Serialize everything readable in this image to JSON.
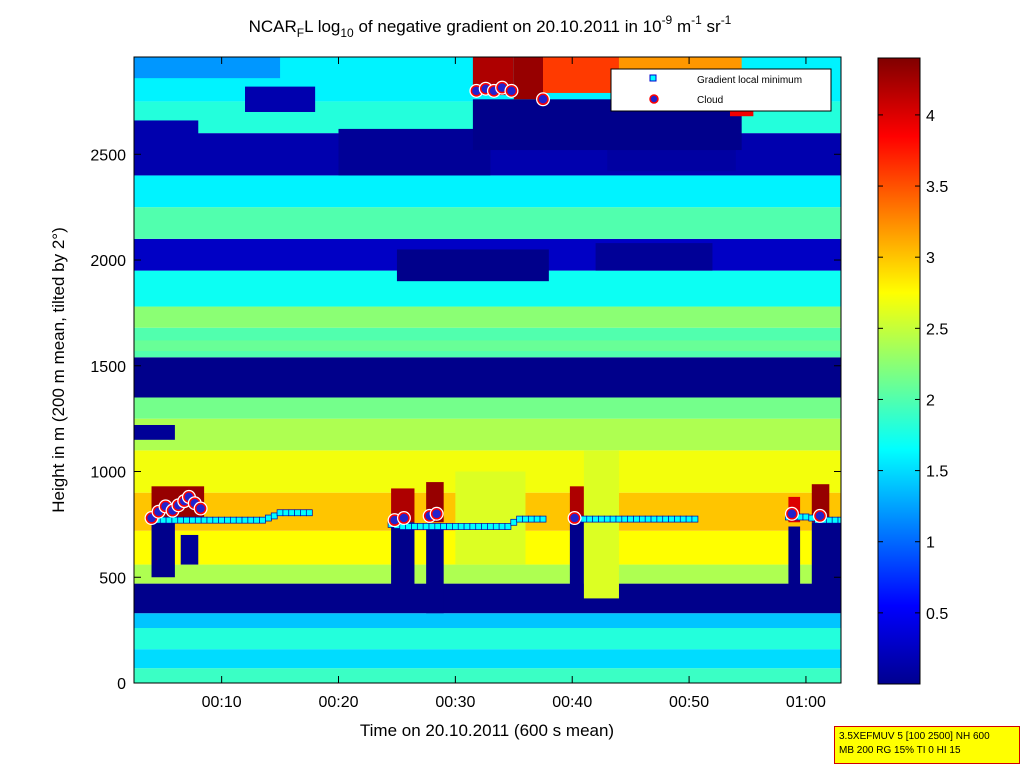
{
  "chart_data": {
    "type": "heatmap",
    "title": {
      "prefix": "NCAR",
      "sub": "F",
      "mid": "L log",
      "log_base": "10",
      "text": " of negative gradient on 20.10.2011 in 10",
      "exp1": "-9",
      "unit1": " m",
      "exp2": "-1",
      "unit2": " sr",
      "exp3": "-1"
    },
    "xlabel": "Time on 20.10.2011 (600 s mean)",
    "ylabel": "Height in m (200 m mean, tilted by 2°)",
    "x_unit": "minutes after 00:00",
    "xlim": [
      2.5,
      63
    ],
    "ylim": [
      0,
      2960
    ],
    "x_ticks": [
      {
        "v": 10,
        "label": "00:10"
      },
      {
        "v": 20,
        "label": "00:20"
      },
      {
        "v": 30,
        "label": "00:30"
      },
      {
        "v": 40,
        "label": "00:40"
      },
      {
        "v": 50,
        "label": "00:50"
      },
      {
        "v": 60,
        "label": "01:00"
      }
    ],
    "y_ticks": [
      {
        "v": 0,
        "label": "0"
      },
      {
        "v": 500,
        "label": "500"
      },
      {
        "v": 1000,
        "label": "1000"
      },
      {
        "v": 1500,
        "label": "1500"
      },
      {
        "v": 2000,
        "label": "2000"
      },
      {
        "v": 2500,
        "label": "2500"
      }
    ],
    "colorbar": {
      "min": 0,
      "max": 4.4,
      "colormap": "jet",
      "ticks": [
        {
          "v": 0.5,
          "label": "0.5"
        },
        {
          "v": 1,
          "label": "1"
        },
        {
          "v": 1.5,
          "label": "1.5"
        },
        {
          "v": 2,
          "label": "2"
        },
        {
          "v": 2.5,
          "label": "2.5"
        },
        {
          "v": 3,
          "label": "3"
        },
        {
          "v": 3.5,
          "label": "3.5"
        },
        {
          "v": 4,
          "label": "4"
        }
      ]
    },
    "legend": {
      "placement": "top-right",
      "entries": [
        {
          "name": "Gradient local minimum",
          "marker": "square",
          "color": "#00ffff"
        },
        {
          "name": "Cloud",
          "marker": "circle",
          "color": "#0000cc",
          "edge": "#ff0000"
        }
      ]
    },
    "bands": [
      {
        "y0": 0,
        "y1": 70,
        "value": 1.9
      },
      {
        "y0": 70,
        "y1": 160,
        "value": 1.5
      },
      {
        "y0": 160,
        "y1": 260,
        "value": 1.8
      },
      {
        "y0": 260,
        "y1": 330,
        "value": 1.4
      },
      {
        "y0": 330,
        "y1": 470,
        "value": 0.05
      },
      {
        "y0": 470,
        "y1": 560,
        "value": 2.4
      },
      {
        "y0": 560,
        "y1": 720,
        "value": 2.75
      },
      {
        "y0": 720,
        "y1": 900,
        "value": 3.0
      },
      {
        "y0": 900,
        "y1": 1100,
        "value": 2.7
      },
      {
        "y0": 1100,
        "y1": 1250,
        "value": 2.4
      },
      {
        "y0": 1250,
        "y1": 1350,
        "value": 2.15
      },
      {
        "y0": 1350,
        "y1": 1540,
        "value": 0.05
      },
      {
        "y0": 1540,
        "y1": 1680,
        "value": 2.0
      },
      {
        "y0": 1680,
        "y1": 1780,
        "value": 2.25
      },
      {
        "y0": 1780,
        "y1": 1950,
        "value": 1.7
      },
      {
        "y0": 1950,
        "y1": 2100,
        "value": 0.3
      },
      {
        "y0": 2100,
        "y1": 2250,
        "value": 2.0
      },
      {
        "y0": 2250,
        "y1": 2400,
        "value": 1.6
      },
      {
        "y0": 2400,
        "y1": 2600,
        "value": 0.2
      },
      {
        "y0": 2600,
        "y1": 2750,
        "value": 1.8
      },
      {
        "y0": 2750,
        "y1": 2960,
        "value": 1.6
      }
    ],
    "blobs": [
      {
        "x0": 2.5,
        "x1": 63,
        "y0": 1570,
        "y1": 1620,
        "value": 2.1
      },
      {
        "x0": 2.5,
        "x1": 6,
        "y0": 1150,
        "y1": 1220,
        "value": 0.1
      },
      {
        "x0": 2.5,
        "x1": 8,
        "y0": 2420,
        "y1": 2660,
        "value": 0.2
      },
      {
        "x0": 20,
        "x1": 33,
        "y0": 2400,
        "y1": 2620,
        "value": 0.1
      },
      {
        "x0": 43,
        "x1": 54,
        "y0": 2420,
        "y1": 2620,
        "value": 0.15
      },
      {
        "x0": 12,
        "x1": 18,
        "y0": 2700,
        "y1": 2820,
        "value": 0.2
      },
      {
        "x0": 2.5,
        "x1": 15,
        "y0": 2860,
        "y1": 2960,
        "value": 1.2
      },
      {
        "x0": 25,
        "x1": 38,
        "y0": 1900,
        "y1": 2050,
        "value": 0.05
      },
      {
        "x0": 42,
        "x1": 52,
        "y0": 1950,
        "y1": 2080,
        "value": 0.1
      },
      {
        "x0": 31.5,
        "x1": 54.5,
        "y0": 2520,
        "y1": 2760,
        "value": 0.05
      },
      {
        "x0": 31.5,
        "x1": 35,
        "y0": 2780,
        "y1": 2960,
        "value": 4.2
      },
      {
        "x0": 35,
        "x1": 37.5,
        "y0": 2760,
        "y1": 2960,
        "value": 4.3
      },
      {
        "x0": 37.5,
        "x1": 44,
        "y0": 2790,
        "y1": 2960,
        "value": 3.6
      },
      {
        "x0": 44,
        "x1": 54.5,
        "y0": 2760,
        "y1": 2960,
        "value": 3.2
      },
      {
        "x0": 53.5,
        "x1": 55.5,
        "y0": 2680,
        "y1": 2800,
        "value": 3.9
      },
      {
        "x0": 4,
        "x1": 8.5,
        "y0": 780,
        "y1": 930,
        "value": 4.3
      },
      {
        "x0": 24.5,
        "x1": 26.5,
        "y0": 760,
        "y1": 920,
        "value": 4.2
      },
      {
        "x0": 27.5,
        "x1": 29,
        "y0": 760,
        "y1": 950,
        "value": 4.3
      },
      {
        "x0": 39.8,
        "x1": 41,
        "y0": 770,
        "y1": 930,
        "value": 4.2
      },
      {
        "x0": 58.5,
        "x1": 59.5,
        "y0": 760,
        "y1": 880,
        "value": 4.0
      },
      {
        "x0": 60.5,
        "x1": 62,
        "y0": 760,
        "y1": 940,
        "value": 4.3
      },
      {
        "x0": 4,
        "x1": 6,
        "y0": 500,
        "y1": 770,
        "value": 0.05
      },
      {
        "x0": 6.5,
        "x1": 8,
        "y0": 560,
        "y1": 700,
        "value": 0.1
      },
      {
        "x0": 24.5,
        "x1": 26.5,
        "y0": 350,
        "y1": 760,
        "value": 0.05
      },
      {
        "x0": 27.5,
        "x1": 29,
        "y0": 330,
        "y1": 740,
        "value": 0.05
      },
      {
        "x0": 39.8,
        "x1": 41,
        "y0": 360,
        "y1": 760,
        "value": 0.05
      },
      {
        "x0": 58.5,
        "x1": 59.5,
        "y0": 400,
        "y1": 740,
        "value": 0.05
      },
      {
        "x0": 60.5,
        "x1": 63,
        "y0": 420,
        "y1": 760,
        "value": 0.05
      },
      {
        "x0": 30,
        "x1": 36,
        "y0": 560,
        "y1": 1000,
        "value": 2.6
      },
      {
        "x0": 41,
        "x1": 44,
        "y0": 400,
        "y1": 1100,
        "value": 2.6
      }
    ],
    "gradient_minimum": {
      "x": [
        4,
        4.5,
        5,
        5.5,
        6,
        6.5,
        7,
        7.5,
        8,
        8.5,
        9,
        9.5,
        10,
        10.5,
        11,
        11.5,
        12,
        12.5,
        13,
        13.5,
        14,
        14.5,
        15,
        15.5,
        16,
        16.5,
        17,
        17.5,
        24.5,
        25,
        25.5,
        26,
        26.5,
        27,
        27.5,
        28,
        28.5,
        29,
        29.5,
        30,
        30.5,
        31,
        31.5,
        32,
        32.5,
        33,
        33.5,
        34,
        34.5,
        35,
        35.5,
        36,
        36.5,
        37,
        37.5,
        40,
        40.5,
        41,
        41.5,
        42,
        42.5,
        43,
        43.5,
        44,
        44.5,
        45,
        45.5,
        46,
        46.5,
        47,
        47.5,
        48,
        48.5,
        49,
        49.5,
        50,
        50.5,
        58.5,
        59,
        59.5,
        60,
        60.5,
        61,
        61.5,
        62,
        62.5,
        63
      ],
      "y": [
        770,
        770,
        770,
        770,
        770,
        770,
        770,
        770,
        770,
        770,
        770,
        770,
        770,
        770,
        770,
        770,
        770,
        770,
        770,
        770,
        780,
        790,
        805,
        805,
        805,
        805,
        805,
        805,
        750,
        745,
        740,
        740,
        740,
        740,
        740,
        740,
        740,
        740,
        740,
        740,
        740,
        740,
        740,
        740,
        740,
        740,
        740,
        740,
        740,
        760,
        775,
        775,
        775,
        775,
        775,
        775,
        775,
        775,
        775,
        775,
        775,
        775,
        775,
        775,
        775,
        775,
        775,
        775,
        775,
        775,
        775,
        775,
        775,
        775,
        775,
        775,
        775,
        785,
        785,
        785,
        785,
        780,
        770,
        770,
        770,
        770,
        770
      ]
    },
    "cloud": {
      "x": [
        4,
        4.6,
        5.2,
        5.8,
        6.3,
        6.8,
        7.2,
        7.7,
        8.2,
        24.8,
        25.6,
        27.8,
        28.4,
        40.2,
        58.8,
        61.2,
        31.8,
        32.6,
        33.3,
        34,
        34.8,
        37.5,
        54.2
      ],
      "y": [
        780,
        810,
        835,
        815,
        840,
        860,
        880,
        850,
        825,
        770,
        780,
        790,
        800,
        780,
        800,
        790,
        2800,
        2810,
        2800,
        2815,
        2800,
        2760,
        2740
      ]
    }
  },
  "annotation": {
    "line1": "3.5XEFMUV 5 [100 2500] NH 600",
    "line2": "MB 200 RG 15% TI 0 HI 15"
  }
}
